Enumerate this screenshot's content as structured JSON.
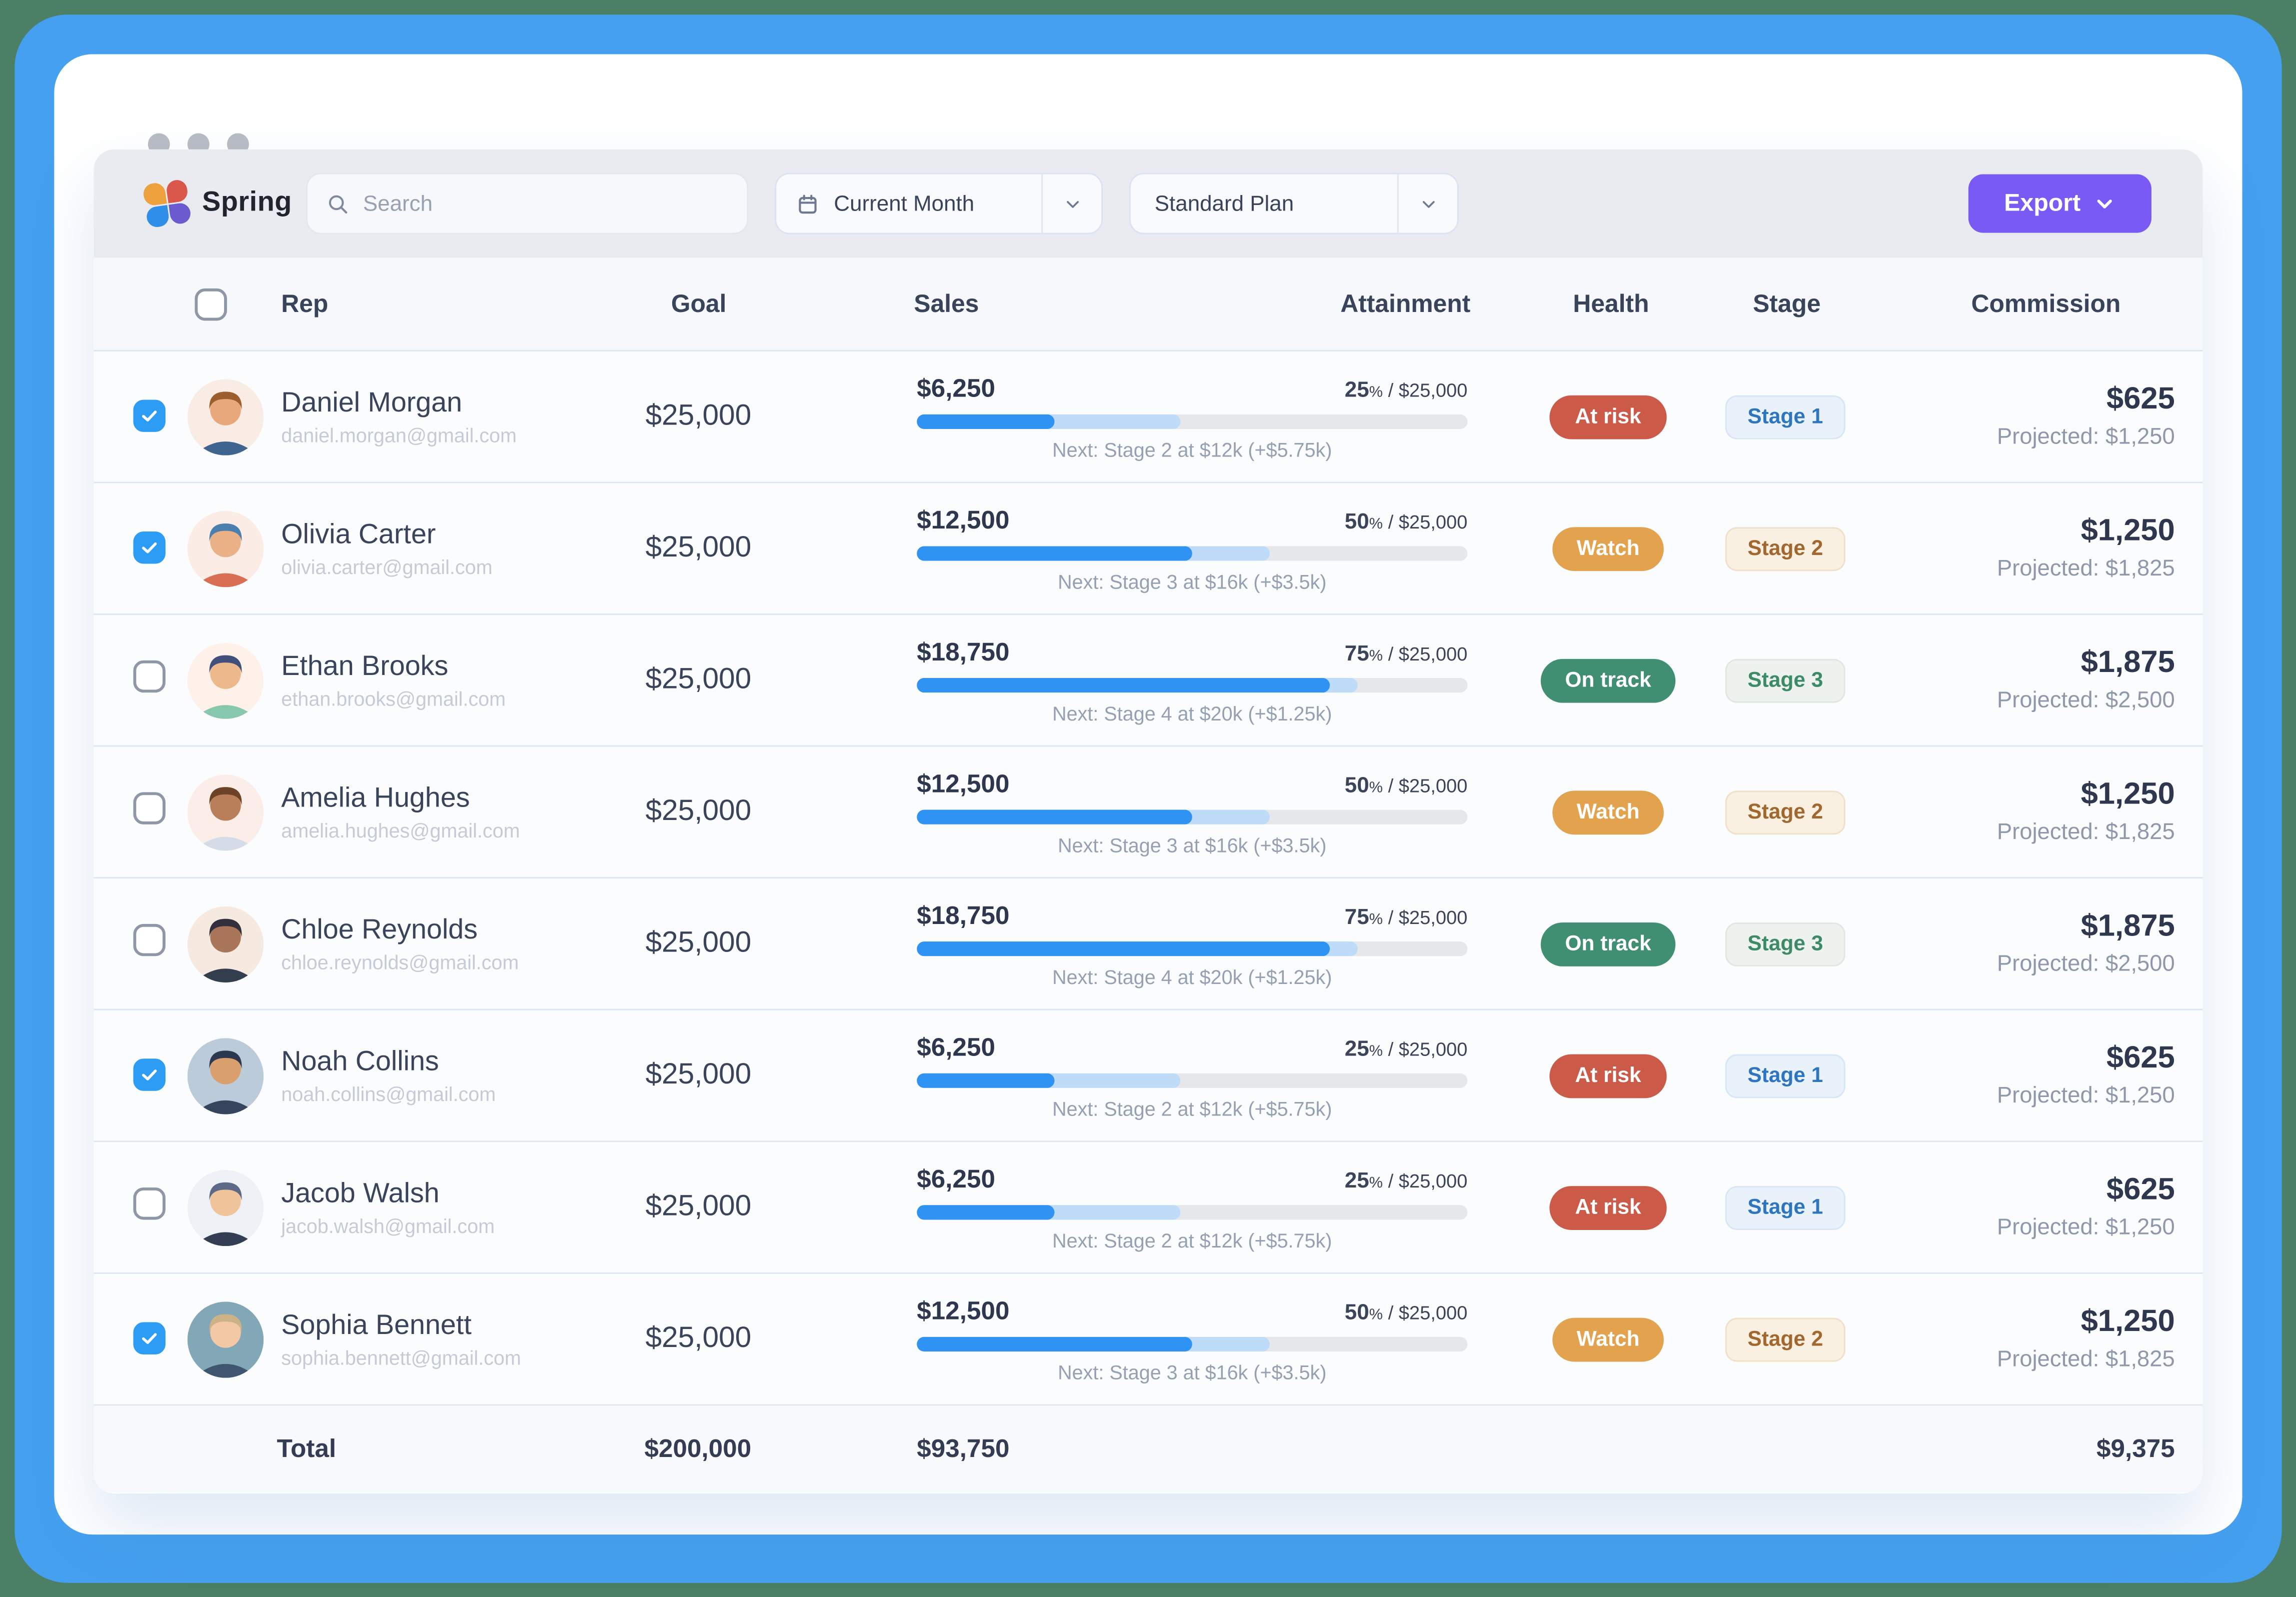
{
  "frame": {
    "outer_color": "#4b7f66",
    "inner_color": "#45a0ef"
  },
  "window": {
    "traffic_dots": 3
  },
  "toolbar": {
    "brand": "Spring",
    "search_placeholder": "Search",
    "period_filter": "Current Month",
    "plan_filter": "Standard Plan",
    "export_label": "Export"
  },
  "table": {
    "headers": {
      "rep": "Rep",
      "goal": "Goal",
      "sales": "Sales",
      "attainment": "Attainment",
      "health": "Health",
      "stage": "Stage",
      "commission": "Commission"
    },
    "rows": [
      {
        "name": "Daniel Morgan",
        "email": "daniel.morgan@gmail.com",
        "goal": "$25,000",
        "sales": "$6,250",
        "attainment_pct": "25",
        "goal_fraction": " / $25,000",
        "bar": {
          "fill_pct": 25,
          "next_threshold_pct": 48
        },
        "next": "Next: Stage 2 at $12k (+$5.75k)",
        "health": {
          "label": "At risk",
          "type": "risk"
        },
        "stage": {
          "label": "Stage 1",
          "type": "1"
        },
        "commission": "$625",
        "projected": "Projected: $1,250",
        "checked": true,
        "avatar": {
          "bg": "#f9ece4",
          "skin": "#e8a87c",
          "hair": "#9a5f2c",
          "shirt": "#3f648f"
        }
      },
      {
        "name": "Olivia Carter",
        "email": "olivia.carter@gmail.com",
        "goal": "$25,000",
        "sales": "$12,500",
        "attainment_pct": "50",
        "goal_fraction": " / $25,000",
        "bar": {
          "fill_pct": 50,
          "next_threshold_pct": 64
        },
        "next": "Next: Stage 3 at $16k (+$3.5k)",
        "health": {
          "label": "Watch",
          "type": "watch"
        },
        "stage": {
          "label": "Stage 2",
          "type": "2"
        },
        "commission": "$1,250",
        "projected": "Projected: $1,825",
        "checked": true,
        "avatar": {
          "bg": "#fbece6",
          "skin": "#eab187",
          "hair": "#4a7fae",
          "shirt": "#d96e52"
        }
      },
      {
        "name": "Ethan Brooks",
        "email": "ethan.brooks@gmail.com",
        "goal": "$25,000",
        "sales": "$18,750",
        "attainment_pct": "75",
        "goal_fraction": " / $25,000",
        "bar": {
          "fill_pct": 75,
          "next_threshold_pct": 80
        },
        "next": "Next: Stage 4 at $20k (+$1.25k)",
        "health": {
          "label": "On track",
          "type": "track"
        },
        "stage": {
          "label": "Stage 3",
          "type": "3"
        },
        "commission": "$1,875",
        "projected": "Projected: $2,500",
        "checked": false,
        "avatar": {
          "bg": "#fdf1ea",
          "skin": "#edb98a",
          "hair": "#41507a",
          "shirt": "#86c7ae"
        }
      },
      {
        "name": "Amelia Hughes",
        "email": "amelia.hughes@gmail.com",
        "goal": "$25,000",
        "sales": "$12,500",
        "attainment_pct": "50",
        "goal_fraction": " / $25,000",
        "bar": {
          "fill_pct": 50,
          "next_threshold_pct": 64
        },
        "next": "Next: Stage 3 at $16k (+$3.5k)",
        "health": {
          "label": "Watch",
          "type": "watch"
        },
        "stage": {
          "label": "Stage 2",
          "type": "2"
        },
        "commission": "$1,250",
        "projected": "Projected: $1,825",
        "checked": false,
        "avatar": {
          "bg": "#fbeee8",
          "skin": "#b97e5a",
          "hair": "#6e4226",
          "shirt": "#d4dce8"
        }
      },
      {
        "name": "Chloe Reynolds",
        "email": "chloe.reynolds@gmail.com",
        "goal": "$25,000",
        "sales": "$18,750",
        "attainment_pct": "75",
        "goal_fraction": " / $25,000",
        "bar": {
          "fill_pct": 75,
          "next_threshold_pct": 80
        },
        "next": "Next: Stage 4 at $20k (+$1.25k)",
        "health": {
          "label": "On track",
          "type": "track"
        },
        "stage": {
          "label": "Stage 3",
          "type": "3"
        },
        "commission": "$1,875",
        "projected": "Projected: $2,500",
        "checked": false,
        "avatar": {
          "bg": "#f6e9e0",
          "skin": "#a9765a",
          "hair": "#33303e",
          "shirt": "#323d4e"
        }
      },
      {
        "name": "Noah Collins",
        "email": "noah.collins@gmail.com",
        "goal": "$25,000",
        "sales": "$6,250",
        "attainment_pct": "25",
        "goal_fraction": " / $25,000",
        "bar": {
          "fill_pct": 25,
          "next_threshold_pct": 48
        },
        "next": "Next: Stage 2 at $12k (+$5.75k)",
        "health": {
          "label": "At risk",
          "type": "risk"
        },
        "stage": {
          "label": "Stage 1",
          "type": "1"
        },
        "commission": "$625",
        "projected": "Projected: $1,250",
        "checked": true,
        "avatar": {
          "bg": "#bccbd9",
          "skin": "#d9a06e",
          "hair": "#2c3850",
          "shirt": "#37445e"
        }
      },
      {
        "name": "Jacob Walsh",
        "email": "jacob.walsh@gmail.com",
        "goal": "$25,000",
        "sales": "$6,250",
        "attainment_pct": "25",
        "goal_fraction": " / $25,000",
        "bar": {
          "fill_pct": 25,
          "next_threshold_pct": 48
        },
        "next": "Next: Stage 2 at $12k (+$5.75k)",
        "health": {
          "label": "At risk",
          "type": "risk"
        },
        "stage": {
          "label": "Stage 1",
          "type": "1"
        },
        "commission": "$625",
        "projected": "Projected: $1,250",
        "checked": false,
        "avatar": {
          "bg": "#eef1f5",
          "skin": "#f0c49a",
          "hair": "#5c6a88",
          "shirt": "#333e55"
        }
      },
      {
        "name": "Sophia Bennett",
        "email": "sophia.bennett@gmail.com",
        "goal": "$25,000",
        "sales": "$12,500",
        "attainment_pct": "50",
        "goal_fraction": " / $25,000",
        "bar": {
          "fill_pct": 50,
          "next_threshold_pct": 64
        },
        "next": "Next: Stage 3 at $16k (+$3.5k)",
        "health": {
          "label": "Watch",
          "type": "watch"
        },
        "stage": {
          "label": "Stage 2",
          "type": "2"
        },
        "commission": "$1,250",
        "projected": "Projected: $1,825",
        "checked": true,
        "avatar": {
          "bg": "#82a7b7",
          "skin": "#f2c9a4",
          "hair": "#cdb287",
          "shirt": "#3f5670"
        }
      }
    ],
    "total": {
      "label": "Total",
      "goal": "$200,000",
      "sales": "$93,750",
      "commission": "$9,375"
    }
  },
  "colors": {
    "accent_export": "#7a5af5",
    "bar_fill": "#2e93f3",
    "bar_next": "#bedbf8",
    "bar_track": "#e6e7ea",
    "health_risk": "#cc5a49",
    "health_watch": "#e2a24e",
    "health_on_track": "#408f72",
    "checkbox_checked": "#2d9cf4"
  }
}
